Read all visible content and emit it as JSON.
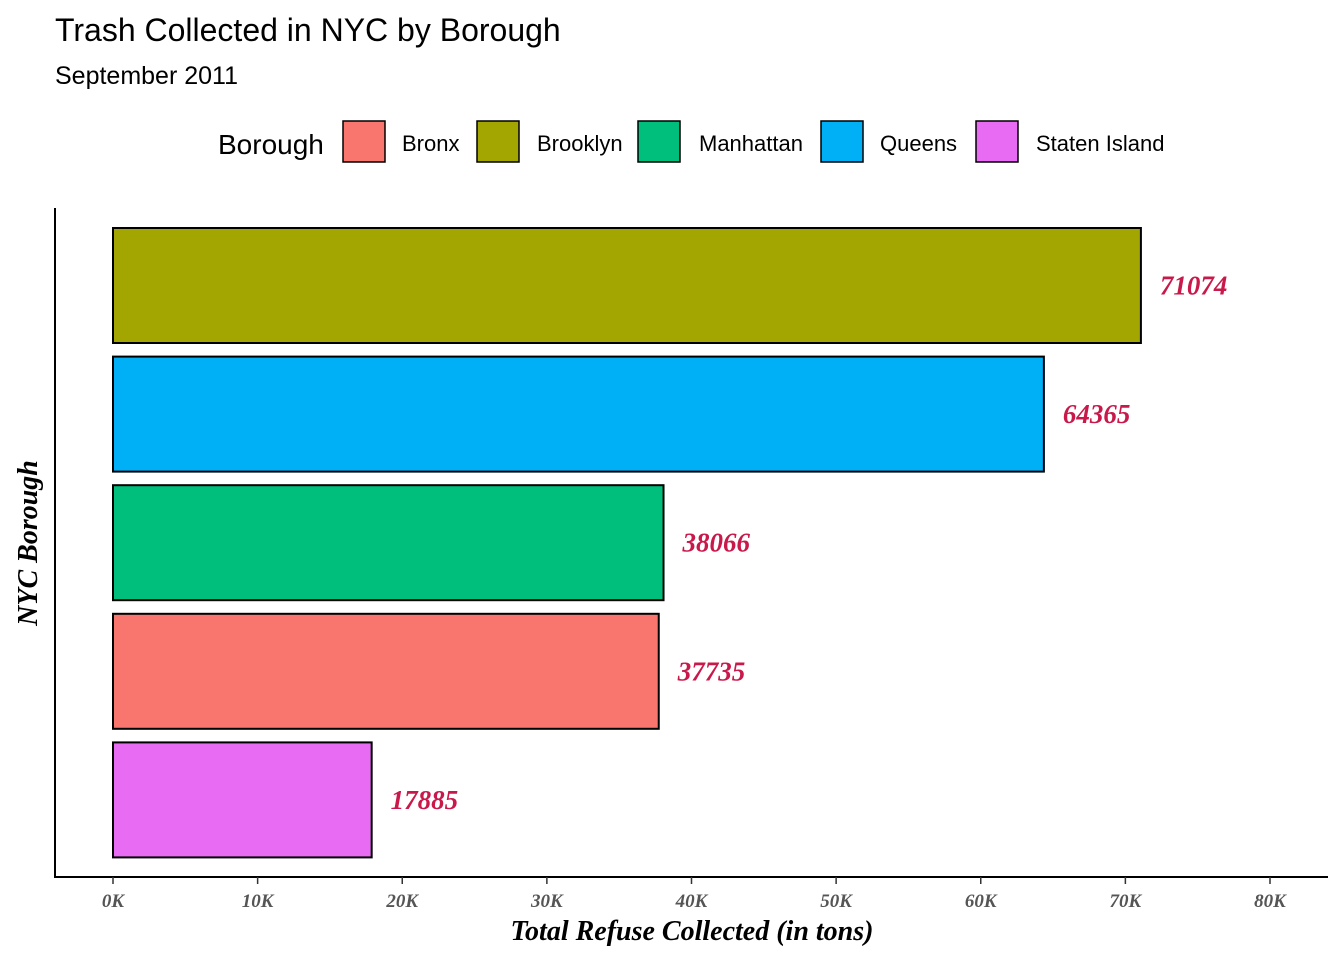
{
  "chart_data": {
    "type": "bar",
    "orientation": "horizontal",
    "title": "Trash Collected in NYC by Borough",
    "subtitle": "September 2011",
    "xlabel": "Total Refuse Collected (in tons)",
    "ylabel": "NYC Borough",
    "xlim": [
      0,
      80000
    ],
    "x_ticks": [
      0,
      10000,
      20000,
      30000,
      40000,
      50000,
      60000,
      70000,
      80000
    ],
    "x_tick_labels": [
      "0K",
      "10K",
      "20K",
      "30K",
      "40K",
      "50K",
      "60K",
      "70K",
      "80K"
    ],
    "categories_top_to_bottom": [
      "Brooklyn",
      "Queens",
      "Manhattan",
      "Bronx",
      "Staten Island"
    ],
    "values": [
      71074,
      64365,
      38066,
      37735,
      17885
    ],
    "data_labels": [
      "71074",
      "64365",
      "38066",
      "37735",
      "17885"
    ],
    "data_label_color": "#c9184a",
    "grid": false,
    "legend": {
      "title": "Borough",
      "placement": "top",
      "entries": [
        {
          "label": "Bronx",
          "color": "#F8766D"
        },
        {
          "label": "Brooklyn",
          "color": "#A3A500"
        },
        {
          "label": "Manhattan",
          "color": "#00BF7D"
        },
        {
          "label": "Queens",
          "color": "#00B0F6"
        },
        {
          "label": "Staten Island",
          "color": "#E76BF3"
        }
      ]
    },
    "bar_colors": {
      "Bronx": "#F8766D",
      "Brooklyn": "#A3A500",
      "Manhattan": "#00BF7D",
      "Queens": "#00B0F6",
      "Staten Island": "#E76BF3"
    }
  }
}
